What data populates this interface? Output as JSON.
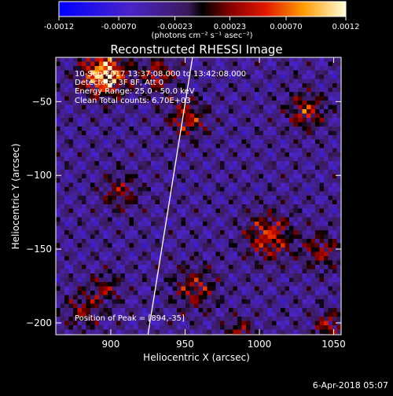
{
  "colorbar": {
    "ticks": [
      "-0.0012",
      "-0.00070",
      "-0.00023",
      "0.00023",
      "0.00070",
      "0.0012"
    ],
    "tick_values": [
      -0.0012,
      -0.0007,
      -0.00023,
      0.00023,
      0.0007,
      0.0012
    ],
    "unit_label": "(photons cm⁻² s⁻¹ asec⁻²)",
    "range": [
      -0.0012,
      0.0012
    ]
  },
  "chart_data": {
    "type": "heatmap",
    "title": "Reconstructed RHESSI Image",
    "xlabel": "Heliocentric X (arcsec)",
    "ylabel": "Heliocentric Y (arcsec)",
    "xlim": [
      863,
      1055
    ],
    "ylim": [
      -208,
      -20
    ],
    "x_ticks": [
      900,
      950,
      1000,
      1050
    ],
    "y_ticks": [
      -50,
      -100,
      -150,
      -200
    ],
    "x_tick_labels": [
      "900",
      "950",
      "1000",
      "1050"
    ],
    "y_tick_labels": [
      "−50",
      "−100",
      "−150",
      "−200"
    ],
    "limb_line": [
      [
        925,
        -208
      ],
      [
        955,
        -20
      ]
    ],
    "annotations": [
      "10-Sep-2017 13:37:08.000 to 13:42:08.000",
      "Detectors: 3F 8F, Att 0",
      "Energy Range: 25.0 - 50.0 keV",
      "Clean    Total counts: 6.70E+03",
      "Position of Peak = [894,-35]"
    ],
    "peak": [
      894,
      -35
    ]
  },
  "footer": {
    "timestamp": "6-Apr-2018 05:07"
  }
}
